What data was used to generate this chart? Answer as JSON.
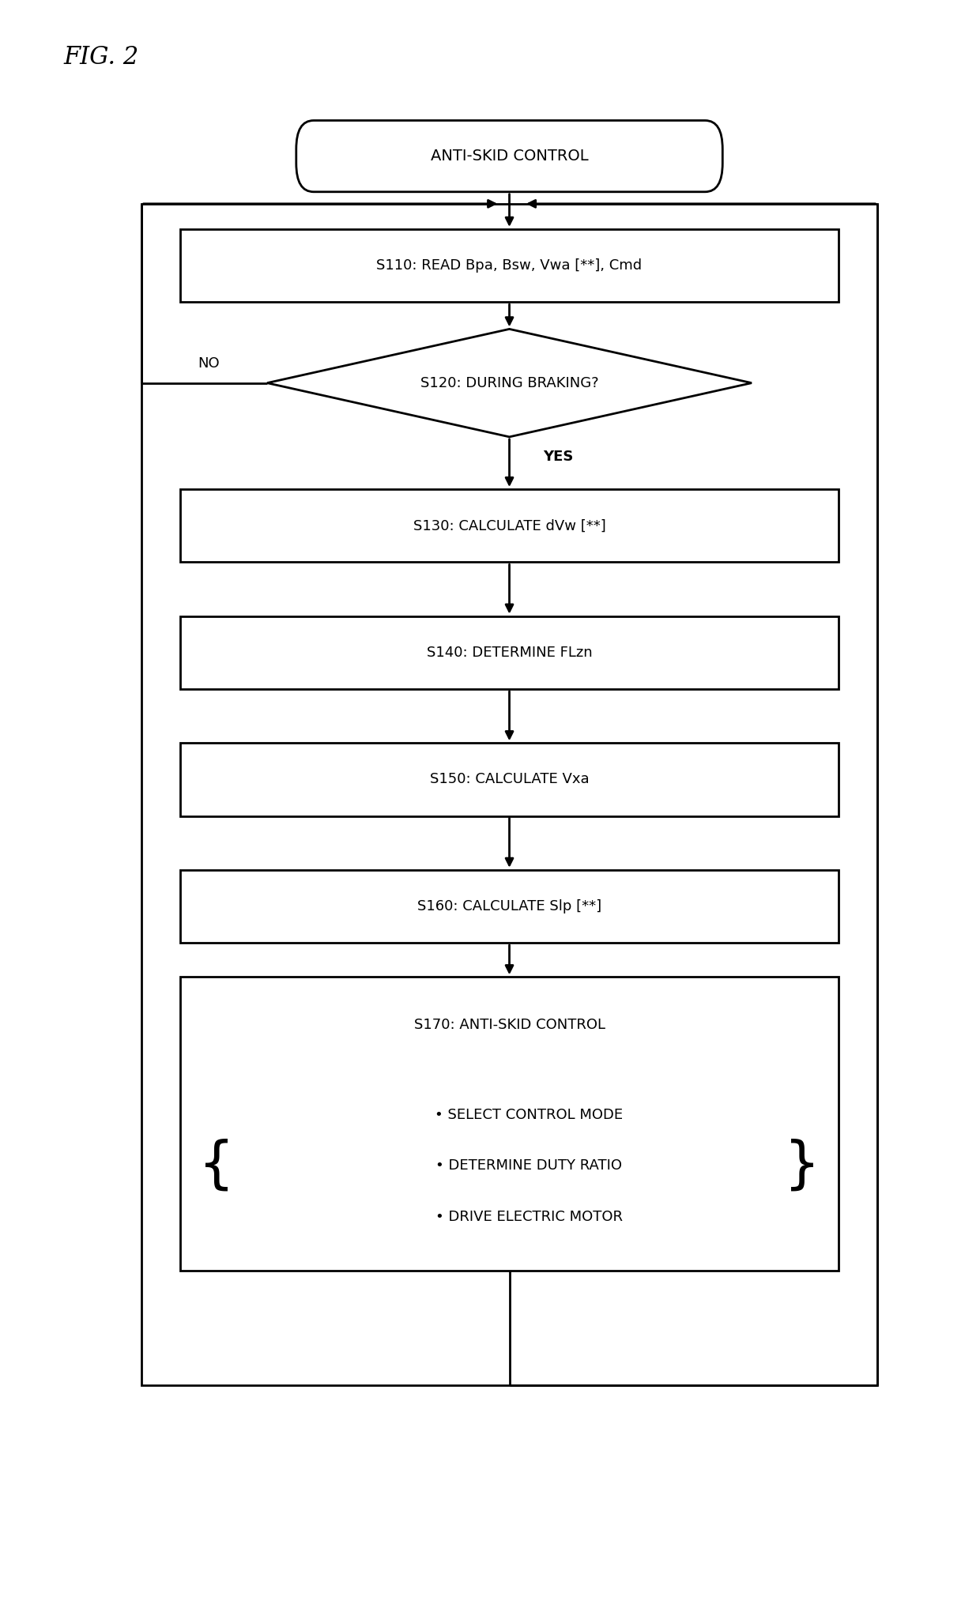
{
  "title": "FIG. 2",
  "fig_width": 12.4,
  "fig_height": 20.21,
  "bg_color": "#ffffff",
  "text_color": "#000000",
  "line_color": "#000000",
  "border_color": "#000000",
  "start_label": "ANTI-SKID CONTROL",
  "s110_label": "S110: READ Bpa, Bsw, Vwa [**], Cmd",
  "s120_label": "S120: DURING BRAKING?",
  "s130_label": "S130: CALCULATE dVw [**]",
  "s140_label": "S140: DETERMINE FLzn",
  "s150_label": "S150: CALCULATE Vxa",
  "s160_label": "S160: CALCULATE Slp [**]",
  "s170_title": "S170: ANTI-SKID CONTROL",
  "s170_line1": "• SELECT CONTROL MODE",
  "s170_line2": "• DETERMINE DUTY RATIO",
  "s170_line3": "• DRIVE ELECTRIC MOTOR",
  "yes_label": "YES",
  "no_label": "NO",
  "lw": 2.0,
  "fontsize_main": 14,
  "fontsize_label": 13
}
